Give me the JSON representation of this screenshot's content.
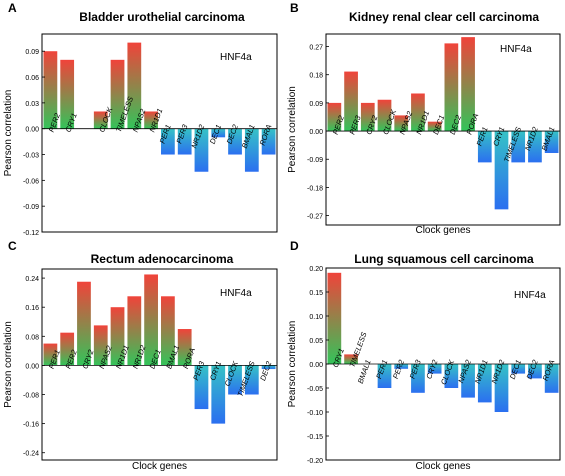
{
  "chart_data": [
    {
      "panel_letter": "A",
      "type": "bar",
      "title": "Bladder urothelial carcinoma",
      "annotation": "HNF4a",
      "xlabel": "",
      "ylabel": "Pearson correlation",
      "ylim": [
        -0.12,
        0.11
      ],
      "yticks": [
        "0.09",
        "0.06",
        "0.03",
        "0.00",
        "-0.03",
        "-0.06",
        "-0.09",
        "-0.12"
      ],
      "ytick_values": [
        0.09,
        0.06,
        0.03,
        0.0,
        -0.03,
        -0.06,
        -0.09,
        -0.12
      ],
      "categories": [
        "PER2",
        "CRY1",
        "CLOCK",
        "TIMELESS",
        "NPAS2",
        "NR1D1",
        "PER1",
        "PER3",
        "NR1D2",
        "DEC1",
        "DEC2",
        "BMAL1",
        "RORA"
      ],
      "values": [
        0.09,
        0.08,
        0.02,
        0.08,
        0.1,
        0.02,
        -0.03,
        -0.03,
        -0.05,
        -0.01,
        -0.03,
        -0.05,
        -0.03
      ],
      "slots": [
        0,
        1,
        3,
        4,
        5,
        6,
        7,
        8,
        9,
        10,
        11,
        12,
        13
      ],
      "n_slots": 14,
      "grid": false,
      "legend": "none"
    },
    {
      "panel_letter": "B",
      "type": "bar",
      "title": "Kidney renal clear cell carcinoma",
      "annotation": "HNF4a",
      "xlabel": "Clock genes",
      "ylabel": "Pearson correlation",
      "ylim": [
        -0.3,
        0.31
      ],
      "yticks": [
        "0.27",
        "0.18",
        "0.09",
        "0.00",
        "-0.09",
        "-0.18",
        "-0.27"
      ],
      "ytick_values": [
        0.27,
        0.18,
        0.09,
        0.0,
        -0.09,
        -0.18,
        -0.27
      ],
      "categories": [
        "PER2",
        "PER3",
        "CRY2",
        "CLOCK",
        "NPAS2",
        "NR1D1",
        "DEC1",
        "DEC2",
        "RORA",
        "PER1",
        "CRY1",
        "TIMELESS",
        "NR1D2",
        "BMAL1"
      ],
      "values": [
        0.09,
        0.19,
        0.09,
        0.1,
        0.05,
        0.12,
        0.03,
        0.28,
        0.3,
        -0.1,
        -0.25,
        -0.1,
        -0.1,
        -0.07
      ],
      "slots": [
        0,
        1,
        2,
        3,
        4,
        5,
        6,
        7,
        8,
        9,
        10,
        11,
        12,
        13
      ],
      "n_slots": 14,
      "grid": false,
      "legend": "none"
    },
    {
      "panel_letter": "C",
      "type": "bar",
      "title": "Rectum adenocarcinoma",
      "annotation": "HNF4a",
      "xlabel": "Clock genes",
      "ylabel": "Pearson correlation",
      "ylim": [
        -0.26,
        0.265
      ],
      "yticks": [
        "0.24",
        "0.16",
        "0.08",
        "0.00",
        "-0.08",
        "-0.16",
        "-0.24"
      ],
      "ytick_values": [
        0.24,
        0.16,
        0.08,
        0.0,
        -0.08,
        -0.16,
        -0.24
      ],
      "categories": [
        "PER1",
        "PER2",
        "CRY2",
        "NPAS2",
        "NR1D1",
        "NR1D2",
        "DEC1",
        "BMAL1",
        "RORA",
        "PER3",
        "CRY1",
        "CLOCK",
        "TIMELESS",
        "DEC2"
      ],
      "values": [
        0.06,
        0.09,
        0.23,
        0.11,
        0.16,
        0.19,
        0.25,
        0.19,
        0.1,
        -0.12,
        -0.16,
        -0.08,
        -0.08,
        -0.01
      ],
      "slots": [
        0,
        1,
        2,
        3,
        4,
        5,
        6,
        7,
        8,
        9,
        10,
        11,
        12,
        13
      ],
      "n_slots": 14,
      "grid": false,
      "legend": "none"
    },
    {
      "panel_letter": "D",
      "type": "bar",
      "title": "Lung squamous cell carcinoma",
      "annotation": "HNF4a",
      "xlabel": "Clock genes",
      "ylabel": "Pearson correlation",
      "ylim": [
        -0.2,
        0.2
      ],
      "yticks": [
        "0.20",
        "0.15",
        "0.10",
        "0.05",
        "0.00",
        "-0.05",
        "-0.10",
        "-0.15",
        "-0.20"
      ],
      "ytick_values": [
        0.2,
        0.15,
        0.1,
        0.05,
        0.0,
        -0.05,
        -0.1,
        -0.15,
        -0.2
      ],
      "categories": [
        "CRY1",
        "TIMELESS",
        "BMAL1",
        "PER1",
        "PER2",
        "PER3",
        "CRY2",
        "CLOCK",
        "NPAS2",
        "NR1D1",
        "NR1D2",
        "DEC1",
        "DEC2",
        "RORA"
      ],
      "values": [
        0.19,
        0.02,
        0.0,
        -0.05,
        -0.01,
        -0.06,
        -0.02,
        -0.05,
        -0.07,
        -0.08,
        -0.1,
        -0.02,
        -0.03,
        -0.06
      ],
      "slots": [
        0,
        1,
        2,
        3,
        4,
        5,
        6,
        7,
        8,
        9,
        10,
        11,
        12,
        13
      ],
      "n_slots": 14,
      "grid": false,
      "legend": "none"
    }
  ],
  "colors": {
    "positive_top": "#f0433a",
    "positive_bottom": "#33c45a",
    "negative_top": "#36c2c6",
    "negative_bottom": "#2b6ff0",
    "axis": "#000000"
  }
}
